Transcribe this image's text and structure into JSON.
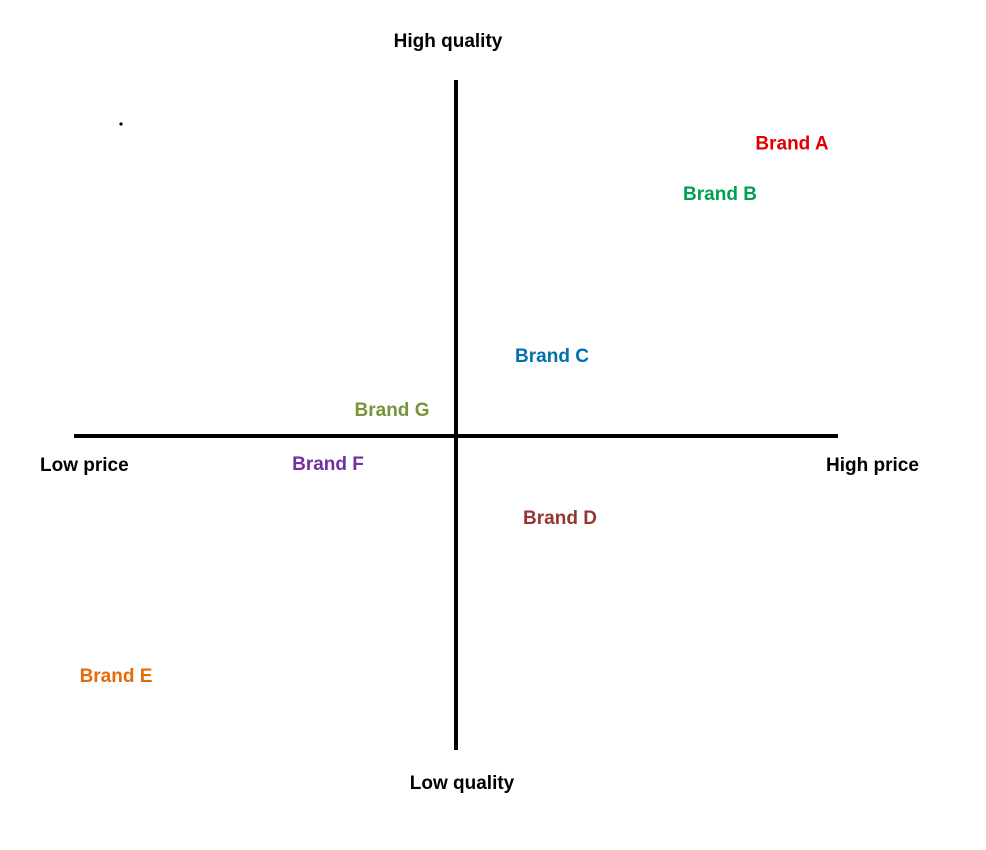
{
  "axes": {
    "top_label": "High quality",
    "bottom_label": "Low quality",
    "left_label": "Low price",
    "right_label": "High price"
  },
  "brands": [
    {
      "name": "Brand A",
      "color": "#e00000",
      "price": 0.84,
      "quality": 0.81
    },
    {
      "name": "Brand B",
      "color": "#00a050",
      "price": 0.66,
      "quality": 0.67
    },
    {
      "name": "Brand C",
      "color": "#0070b0",
      "price": 0.24,
      "quality": 0.22
    },
    {
      "name": "Brand D",
      "color": "#943634",
      "price": 0.26,
      "quality": -0.23
    },
    {
      "name": "Brand E",
      "color": "#e36c09",
      "price": -0.85,
      "quality": -0.67
    },
    {
      "name": "Brand F",
      "color": "#7030a0",
      "price": -0.32,
      "quality": -0.08
    },
    {
      "name": "Brand G",
      "color": "#77933c",
      "price": -0.16,
      "quality": 0.07
    }
  ]
}
